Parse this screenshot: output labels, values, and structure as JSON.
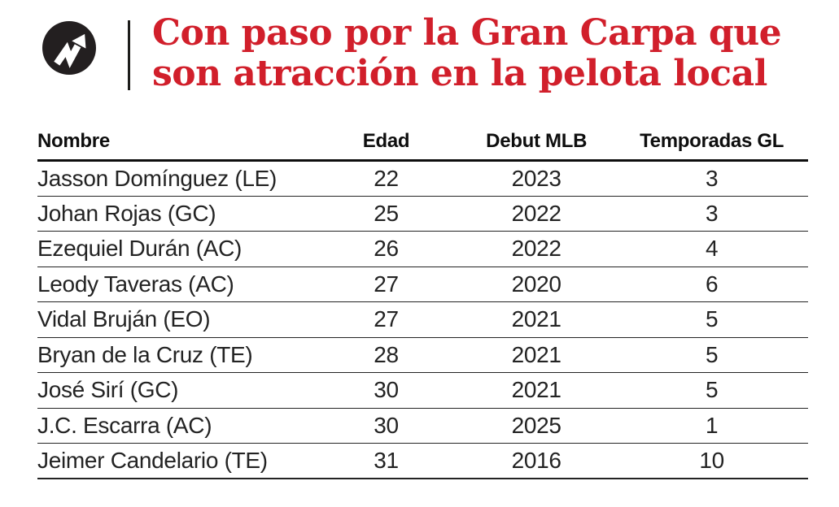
{
  "brand": {
    "logo_bg_color": "#231f20",
    "accent_red": "#d11f2b"
  },
  "header": {
    "title_line1": "Con paso por la Gran Carpa que",
    "title_line2": "son atracción en la pelota local"
  },
  "table": {
    "columns": [
      "Nombre",
      "Edad",
      "Debut MLB",
      "Temporadas GL"
    ],
    "rows": [
      [
        "Jasson Domínguez (LE)",
        "22",
        "2023",
        "3"
      ],
      [
        "Johan Rojas (GC)",
        "25",
        "2022",
        "3"
      ],
      [
        "Ezequiel Durán (AC)",
        "26",
        "2022",
        "4"
      ],
      [
        "Leody Taveras (AC)",
        "27",
        "2020",
        "6"
      ],
      [
        "Vidal Bruján (EO)",
        "27",
        "2021",
        "5"
      ],
      [
        "Bryan de la Cruz (TE)",
        "28",
        "2021",
        "5"
      ],
      [
        "José Sirí (GC)",
        "30",
        "2021",
        "5"
      ],
      [
        "J.C. Escarra (AC)",
        "30",
        "2025",
        "1"
      ],
      [
        "Jeimer Candelario (TE)",
        "31",
        "2016",
        "10"
      ]
    ]
  },
  "chart_data": {
    "type": "table",
    "title": "Con paso por la Gran Carpa que son atracción en la pelota local",
    "columns": [
      "Nombre",
      "Edad",
      "Debut MLB",
      "Temporadas GL"
    ],
    "rows": [
      {
        "nombre": "Jasson Domínguez (LE)",
        "edad": 22,
        "debut_mlb": 2023,
        "temporadas_gl": 3
      },
      {
        "nombre": "Johan Rojas (GC)",
        "edad": 25,
        "debut_mlb": 2022,
        "temporadas_gl": 3
      },
      {
        "nombre": "Ezequiel Durán (AC)",
        "edad": 26,
        "debut_mlb": 2022,
        "temporadas_gl": 4
      },
      {
        "nombre": "Leody Taveras (AC)",
        "edad": 27,
        "debut_mlb": 2020,
        "temporadas_gl": 6
      },
      {
        "nombre": "Vidal Bruján (EO)",
        "edad": 27,
        "debut_mlb": 2021,
        "temporadas_gl": 5
      },
      {
        "nombre": "Bryan de la Cruz (TE)",
        "edad": 28,
        "debut_mlb": 2021,
        "temporadas_gl": 5
      },
      {
        "nombre": "José Sirí (GC)",
        "edad": 30,
        "debut_mlb": 2021,
        "temporadas_gl": 5
      },
      {
        "nombre": "J.C. Escarra (AC)",
        "edad": 30,
        "debut_mlb": 2025,
        "temporadas_gl": 1
      },
      {
        "nombre": "Jeimer Candelario (TE)",
        "edad": 31,
        "debut_mlb": 2016,
        "temporadas_gl": 10
      }
    ]
  }
}
